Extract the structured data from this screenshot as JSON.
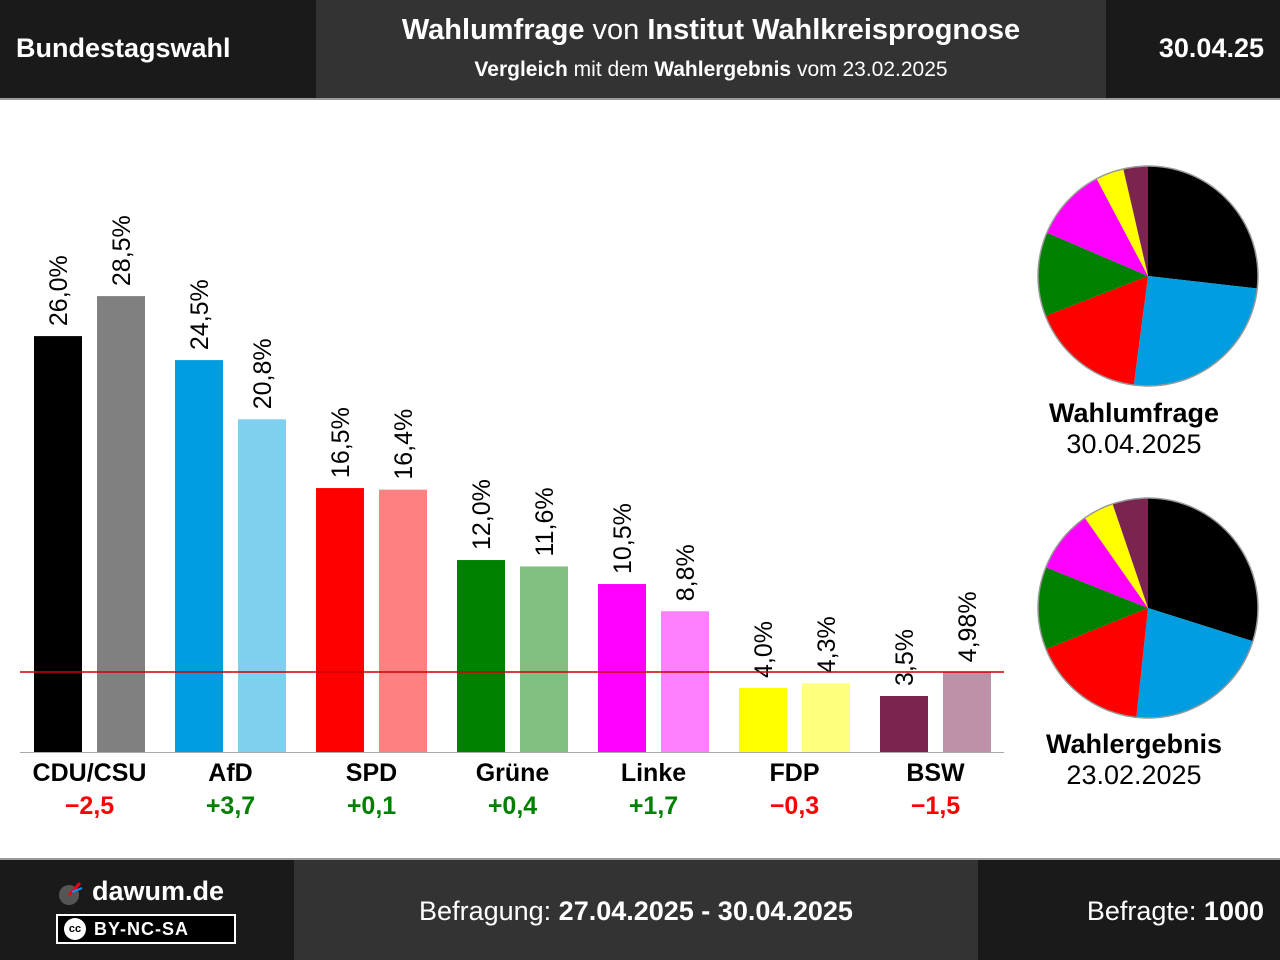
{
  "header": {
    "left_title": "Bundestagswahl",
    "title_bold1": "Wahlumfrage",
    "title_plain": "von",
    "title_bold2": "Institut Wahlkreisprognose",
    "sub_bold1": "Vergleich",
    "sub_plain1": "mit dem",
    "sub_bold2": "Wahlergebnis",
    "sub_plain2": "vom 23.02.2025",
    "date": "30.04.25"
  },
  "footer": {
    "brand": "dawum.de",
    "license_badge": "BY-NC-SA",
    "license_circle": "cc",
    "survey_label": "Befragung:",
    "survey_period": "27.04.2025 - 30.04.2025",
    "respondents_label": "Befragte:",
    "respondents_value": "1000"
  },
  "pies": {
    "poll": {
      "title": "Wahlumfrage",
      "date": "30.04.2025"
    },
    "result": {
      "title": "Wahlergebnis",
      "date": "23.02.2025"
    }
  },
  "chart_data": {
    "type": "bar",
    "categories": [
      "CDU/CSU",
      "AfD",
      "SPD",
      "Grüne",
      "Linke",
      "FDP",
      "BSW"
    ],
    "series": [
      {
        "name": "Wahlumfrage",
        "values": [
          26.0,
          24.5,
          16.5,
          12.0,
          10.5,
          4.0,
          3.5
        ],
        "labels": [
          "26,0%",
          "24,5%",
          "16,5%",
          "12,0%",
          "10,5%",
          "4,0%",
          "3,5%"
        ]
      },
      {
        "name": "Wahlergebnis",
        "values": [
          28.5,
          20.8,
          16.4,
          11.6,
          8.8,
          4.3,
          4.98
        ],
        "labels": [
          "28,5%",
          "20,8%",
          "16,4%",
          "11,6%",
          "8,8%",
          "4,3%",
          "4,98%"
        ]
      }
    ],
    "colors_poll": [
      "#000000",
      "#009ee0",
      "#ff0000",
      "#008000",
      "#ff00ff",
      "#ffff00",
      "#7b2450"
    ],
    "colors_result": [
      "#808080",
      "#80cfef",
      "#ff8080",
      "#80bf80",
      "#ff80ff",
      "#ffff80",
      "#bd91a7"
    ],
    "differences": [
      "−2,5",
      "+3,7",
      "+0,1",
      "+0,4",
      "+1,7",
      "−0,3",
      "−1,5"
    ],
    "difference_colors": [
      "#ff0000",
      "#008000",
      "#008000",
      "#008000",
      "#008000",
      "#ff0000",
      "#ff0000"
    ],
    "threshold": 5,
    "threshold_color": "#cc0000",
    "ylim": [
      0,
      30
    ],
    "grid": false
  }
}
